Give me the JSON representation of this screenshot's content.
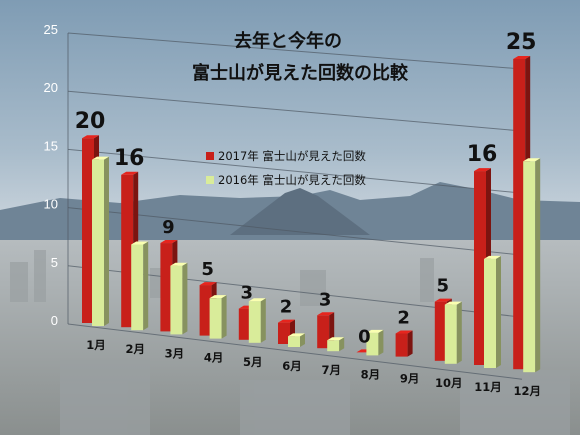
{
  "chart_data": {
    "type": "bar",
    "title": [
      "去年と今年の",
      "富士山が見えた回数の比較"
    ],
    "categories": [
      "1月",
      "2月",
      "3月",
      "4月",
      "5月",
      "6月",
      "7月",
      "8月",
      "9月",
      "10月",
      "11月",
      "12月"
    ],
    "series": [
      {
        "name": "2017年 富士山が見えた回数",
        "values": [
          20,
          16,
          9,
          5,
          3,
          2,
          3,
          0,
          2,
          5,
          16,
          25
        ],
        "color": "#c8201a"
      },
      {
        "name": "2016年 富士山が見えた回数",
        "values": [
          18,
          9,
          7,
          4,
          4,
          1,
          1,
          2,
          null,
          5,
          9,
          17
        ],
        "color": "#d9ec9a"
      }
    ],
    "data_labels": [
      "20",
      "16",
      "9",
      "5",
      "3",
      "2",
      "3",
      "0",
      "2",
      "5",
      "16",
      "25"
    ],
    "ylim": [
      0,
      25
    ],
    "yticks": [
      0,
      5,
      10,
      15,
      20,
      25
    ],
    "legend": "center",
    "grid": true
  }
}
